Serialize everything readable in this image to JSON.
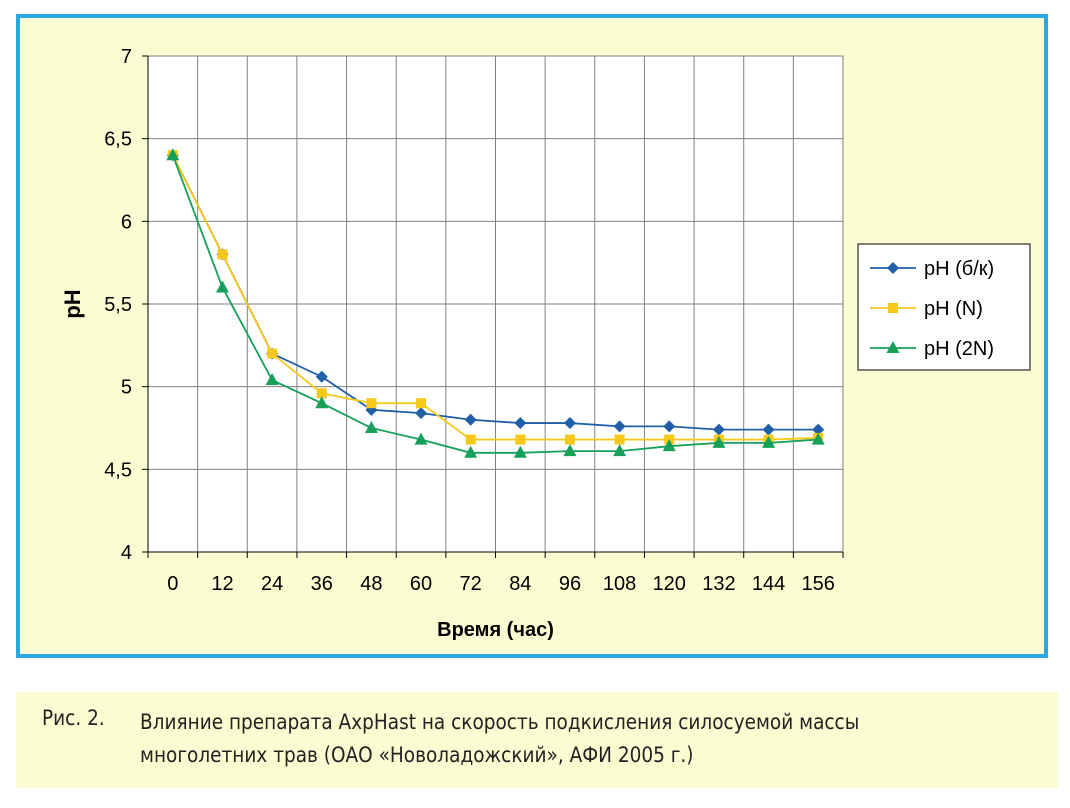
{
  "chart_data": {
    "type": "line",
    "xlabel": "Время (час)",
    "ylabel": "pH",
    "categories": [
      "0",
      "12",
      "24",
      "36",
      "48",
      "60",
      "72",
      "84",
      "96",
      "108",
      "120",
      "132",
      "144",
      "156"
    ],
    "ylim": [
      4,
      7
    ],
    "yticks": [
      "4",
      "4,5",
      "5",
      "5,5",
      "6",
      "6,5",
      "7"
    ],
    "grid": true,
    "legend_position": "right",
    "series": [
      {
        "name": "pH (б/к)",
        "color": "#1f5fa8",
        "marker": "diamond",
        "values": [
          6.4,
          5.8,
          5.2,
          5.06,
          4.86,
          4.84,
          4.8,
          4.78,
          4.78,
          4.76,
          4.76,
          4.74,
          4.74,
          4.74
        ]
      },
      {
        "name": "pH (N)",
        "color": "#f7c81a",
        "marker": "square",
        "values": [
          6.4,
          5.8,
          5.2,
          4.96,
          4.9,
          4.9,
          4.68,
          4.68,
          4.68,
          4.68,
          4.68,
          4.68,
          4.68,
          4.69
        ]
      },
      {
        "name": "pH (2N)",
        "color": "#16a05a",
        "marker": "triangle",
        "values": [
          6.4,
          5.6,
          5.04,
          4.9,
          4.75,
          4.68,
          4.6,
          4.6,
          4.61,
          4.61,
          4.64,
          4.66,
          4.66,
          4.68
        ]
      }
    ]
  },
  "caption": {
    "label": "Рис. 2.",
    "line1": "Влияние препарата AxpHast на скорость подкисления силосуемой массы",
    "line2": "многолетних трав (ОАО «Новоладожский», АФИ 2005 г.)"
  }
}
